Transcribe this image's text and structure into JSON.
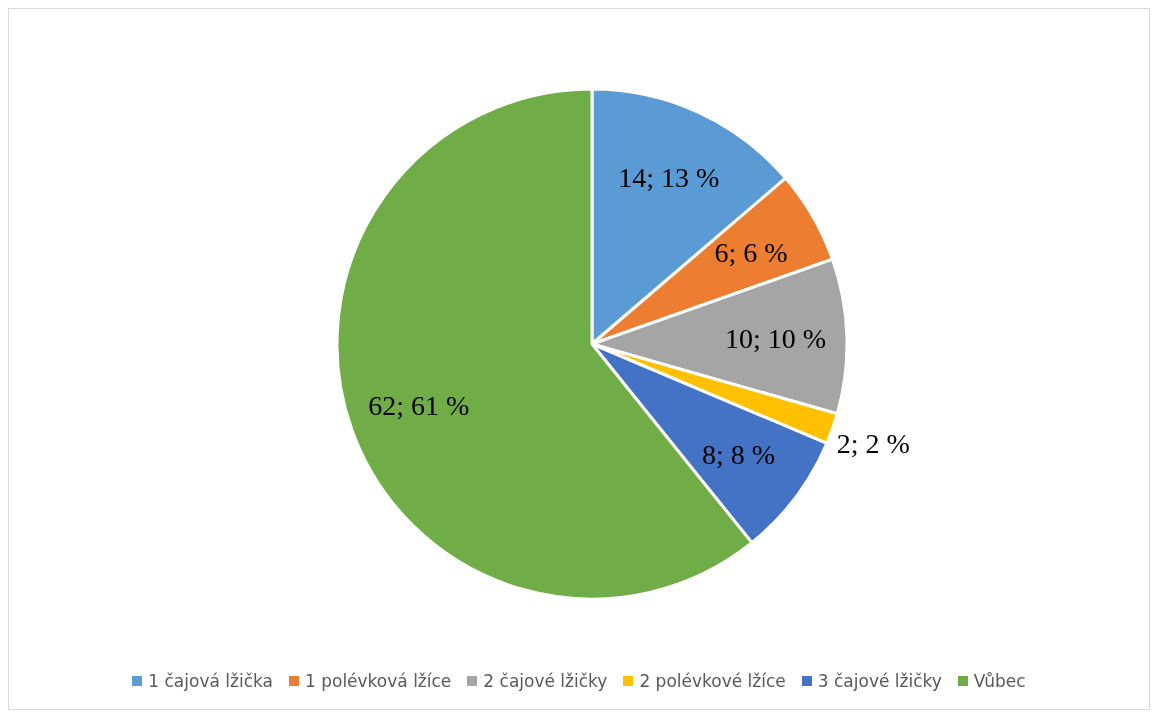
{
  "chart_data": {
    "type": "pie",
    "categories": [
      "1 čajová lžička",
      "1 polévková lžíce",
      "2 čajové lžičky",
      "2 polévkové lžíce",
      "3 čajové lžičky",
      "Vůbec"
    ],
    "values": [
      14,
      6,
      10,
      2,
      8,
      62
    ],
    "colors": [
      "#5b9bd5",
      "#ed7d31",
      "#a5a5a5",
      "#ffc000",
      "#4472c4",
      "#70ad47"
    ],
    "value_labels": [
      "14; 13 %",
      "6; 6 %",
      "10; 10 %",
      "2; 2 %",
      "8; 8 %",
      "62; 61 %"
    ],
    "legend": "bottom"
  }
}
